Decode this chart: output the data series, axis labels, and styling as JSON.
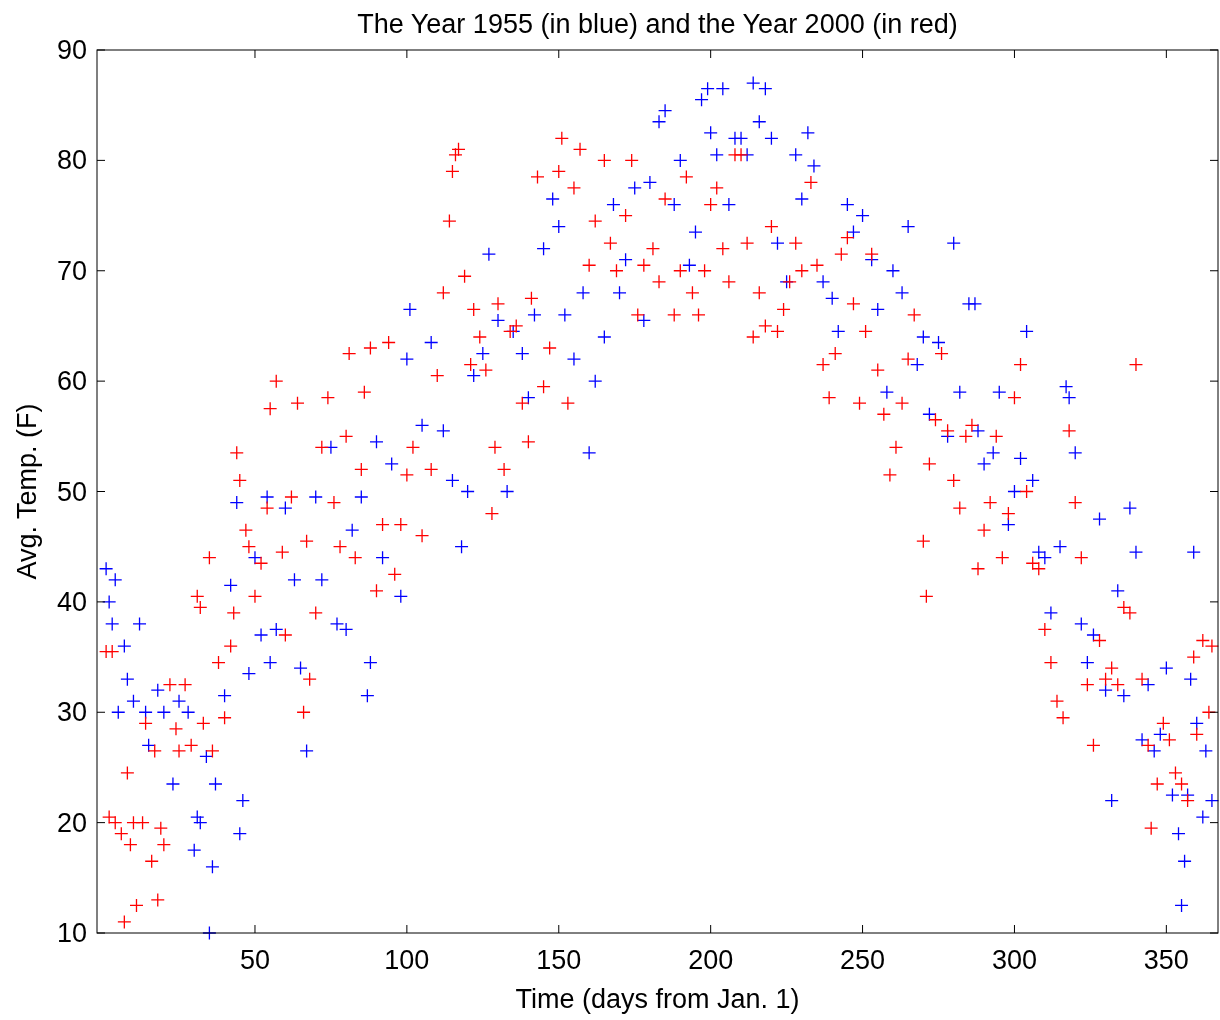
{
  "chart_data": {
    "type": "scatter",
    "title": "The Year 1955 (in blue) and the Year 2000 (in red)",
    "xlabel": "Time (days from Jan. 1)",
    "ylabel": "Avg. Temp. (F)",
    "xlim": [
      -2,
      367
    ],
    "ylim": [
      10,
      90
    ],
    "xticks": [
      50,
      100,
      150,
      200,
      250,
      300,
      350
    ],
    "yticks": [
      10,
      20,
      30,
      40,
      50,
      60,
      70,
      80,
      90
    ],
    "grid": false,
    "marker": "cross",
    "series": [
      {
        "color": "#0000ff",
        "x": [
          1,
          2,
          3,
          4,
          5,
          7,
          8,
          10,
          12,
          14,
          15,
          18,
          20,
          23,
          25,
          28,
          30,
          31,
          32,
          34,
          35,
          36,
          37,
          40,
          42,
          44,
          45,
          46,
          48,
          50,
          52,
          54,
          55,
          57,
          60,
          63,
          65,
          67,
          70,
          72,
          75,
          77,
          80,
          82,
          85,
          87,
          88,
          90,
          92,
          95,
          98,
          100,
          101,
          105,
          108,
          112,
          115,
          118,
          120,
          122,
          125,
          127,
          130,
          133,
          135,
          138,
          140,
          142,
          145,
          148,
          150,
          152,
          155,
          158,
          160,
          162,
          165,
          168,
          170,
          172,
          175,
          178,
          180,
          183,
          185,
          188,
          190,
          193,
          195,
          197,
          199,
          200,
          202,
          204,
          206,
          208,
          210,
          212,
          214,
          216,
          218,
          220,
          222,
          225,
          228,
          230,
          232,
          234,
          237,
          240,
          242,
          245,
          247,
          250,
          253,
          255,
          258,
          260,
          263,
          265,
          268,
          270,
          272,
          275,
          278,
          280,
          282,
          285,
          287,
          288,
          290,
          293,
          295,
          298,
          300,
          302,
          304,
          306,
          308,
          310,
          312,
          315,
          317,
          318,
          320,
          322,
          324,
          326,
          328,
          330,
          332,
          334,
          336,
          338,
          340,
          342,
          344,
          346,
          348,
          350,
          352,
          354,
          355,
          356,
          357,
          358,
          359,
          360,
          362,
          363,
          365
        ],
        "values": [
          43,
          40,
          38,
          42,
          30,
          36,
          33,
          31,
          38,
          30,
          27,
          32,
          30,
          23.5,
          31,
          30,
          17.5,
          20.5,
          20,
          26,
          10,
          16,
          23.5,
          31.5,
          41.5,
          49,
          19,
          22,
          33.5,
          44,
          37,
          49.5,
          34.5,
          37.5,
          48.5,
          42,
          34,
          26.5,
          49.5,
          42,
          54,
          38,
          37.5,
          46.5,
          49.5,
          31.5,
          34.5,
          54.5,
          44,
          52.5,
          40.5,
          62,
          66.5,
          56,
          63.5,
          55.5,
          51,
          45,
          50,
          60.5,
          62.5,
          71.5,
          65.5,
          50,
          64.5,
          62.5,
          58.5,
          66,
          72,
          76.5,
          74,
          66,
          62,
          68,
          53.5,
          60,
          64,
          76,
          68,
          71,
          77.5,
          65.5,
          78,
          83.5,
          84.5,
          76,
          80,
          70.5,
          73.5,
          85.5,
          86.5,
          82.5,
          80.5,
          86.5,
          76,
          82,
          82,
          80.5,
          87,
          83.5,
          86.5,
          82,
          72.5,
          69,
          80.5,
          76.5,
          82.5,
          79.5,
          69,
          67.5,
          64.5,
          76,
          73.5,
          75,
          71,
          66.5,
          59,
          70,
          68,
          74,
          61.5,
          64,
          57,
          63.5,
          55,
          72.5,
          59,
          67,
          67,
          55.5,
          52.5,
          53.5,
          59,
          47,
          50,
          53,
          64.5,
          51,
          44.5,
          44,
          39,
          45,
          59.5,
          58.5,
          53.5,
          38,
          34.5,
          37,
          47.5,
          32,
          22,
          41,
          31.5,
          48.5,
          44.5,
          27.5,
          32.5,
          26.5,
          28,
          34,
          22.5,
          19,
          12.5,
          16.5,
          22.5,
          33,
          44.5,
          29,
          20.5,
          26.5,
          22
        ]
      },
      {
        "color": "#ff0000",
        "x": [
          1,
          2,
          3,
          4,
          6,
          7,
          8,
          9,
          10,
          11,
          13,
          14,
          16,
          17,
          18,
          19,
          20,
          22,
          24,
          25,
          27,
          29,
          31,
          32,
          33,
          35,
          36,
          38,
          40,
          42,
          43,
          44,
          45,
          47,
          48,
          50,
          52,
          54,
          55,
          57,
          59,
          60,
          62,
          64,
          66,
          67,
          68,
          70,
          72,
          74,
          76,
          78,
          80,
          81,
          83,
          85,
          86,
          88,
          90,
          92,
          94,
          96,
          98,
          100,
          102,
          105,
          108,
          110,
          112,
          114,
          115,
          116,
          117,
          119,
          121,
          122,
          124,
          126,
          128,
          129,
          130,
          132,
          134,
          136,
          138,
          140,
          141,
          143,
          145,
          147,
          150,
          151,
          153,
          155,
          157,
          160,
          162,
          165,
          167,
          169,
          172,
          174,
          176,
          178,
          181,
          183,
          185,
          188,
          190,
          192,
          194,
          196,
          198,
          200,
          202,
          204,
          206,
          208,
          210,
          212,
          214,
          216,
          218,
          220,
          222,
          224,
          226,
          228,
          230,
          233,
          235,
          237,
          239,
          241,
          243,
          245,
          247,
          249,
          251,
          253,
          255,
          257,
          259,
          261,
          263,
          265,
          267,
          270,
          271,
          272,
          274,
          276,
          278,
          280,
          282,
          284,
          286,
          288,
          290,
          292,
          294,
          296,
          298,
          300,
          302,
          304,
          306,
          308,
          310,
          312,
          314,
          316,
          318,
          320,
          322,
          324,
          326,
          328,
          330,
          332,
          334,
          336,
          338,
          340,
          342,
          344,
          345,
          347,
          349,
          351,
          353,
          355,
          357,
          359,
          360,
          362,
          364,
          365
        ],
        "values": [
          35.5,
          20.5,
          35.5,
          20,
          19,
          11,
          24.5,
          18,
          20,
          12.5,
          20,
          29,
          16.5,
          26.5,
          13,
          19.5,
          18,
          32.5,
          28.5,
          26.5,
          32.5,
          27,
          40.5,
          39.5,
          29,
          44,
          26.5,
          34.5,
          29.5,
          36,
          39,
          53.5,
          51,
          46.5,
          45,
          40.5,
          43.5,
          48.5,
          57.5,
          60,
          44.5,
          37,
          49.5,
          58,
          30,
          45.5,
          33,
          39,
          54,
          58.5,
          49,
          45,
          55,
          62.5,
          44,
          52,
          59,
          63,
          41,
          47,
          63.5,
          42.5,
          47,
          51.5,
          54,
          46,
          52,
          60.5,
          68,
          74.5,
          79,
          80.5,
          81,
          69.5,
          61.5,
          66.5,
          64,
          61,
          48,
          54,
          67,
          52,
          64.5,
          65,
          58,
          54.5,
          67.5,
          78.5,
          59.5,
          63,
          79,
          82,
          58,
          77.5,
          81,
          70.5,
          74.5,
          80,
          72.5,
          70,
          75,
          80,
          66,
          70.5,
          72,
          69,
          76.5,
          66,
          70,
          78.5,
          68,
          66,
          70,
          76,
          77.5,
          72,
          69,
          80.5,
          80.5,
          72.5,
          64,
          68,
          65,
          74,
          64.5,
          66.5,
          69,
          72.5,
          70,
          78,
          70.5,
          61.5,
          58.5,
          62.5,
          71.5,
          73,
          67,
          58,
          64.5,
          71.5,
          61,
          57,
          51.5,
          54,
          58,
          62,
          66,
          45.5,
          40.5,
          52.5,
          56.5,
          62.5,
          55.5,
          51,
          48.5,
          55,
          56,
          43,
          46.5,
          49,
          55,
          44,
          48,
          58.5,
          61.5,
          50,
          43.5,
          43,
          37.5,
          34.5,
          31,
          29.5,
          55.5,
          49,
          44,
          32.5,
          27,
          36.5,
          33,
          34,
          32.5,
          39.5,
          39,
          61.5,
          33,
          27,
          19.5,
          23.5,
          29,
          27.5,
          24.5,
          23.5,
          22,
          35,
          28,
          36.5,
          30,
          36
        ]
      }
    ]
  }
}
